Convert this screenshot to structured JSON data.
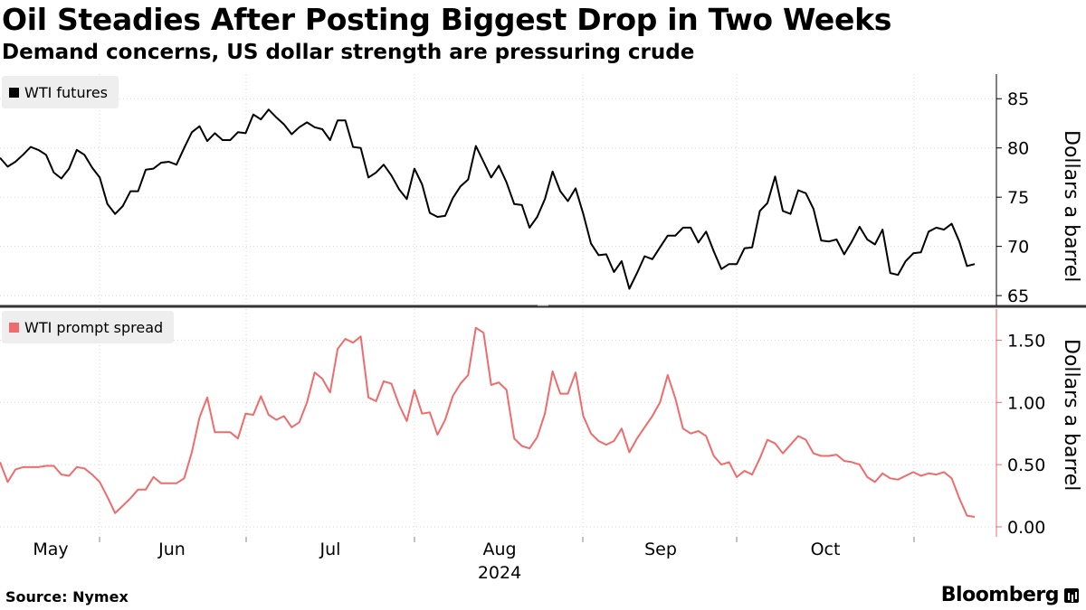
{
  "title": "Oil Steadies After Posting Biggest Drop in Two Weeks",
  "subtitle": "Demand concerns, US dollar strength are pressuring crude",
  "source": "Source: Nymex",
  "brand": "Bloomberg",
  "chart_data": [
    {
      "type": "line",
      "series_name": "WTI futures",
      "color": "#000000",
      "ylabel": "Dollars a barrel",
      "ylim": [
        64,
        87.5
      ],
      "yticks": [
        65,
        70,
        75,
        80,
        85
      ],
      "ytick_labels": [
        "65",
        "70",
        "75",
        "80",
        "85"
      ],
      "values": [
        79.0,
        78.1,
        78.6,
        79.3,
        80.1,
        79.8,
        79.3,
        77.5,
        76.9,
        77.9,
        79.8,
        79.3,
        78.0,
        77.0,
        74.3,
        73.3,
        74.1,
        75.6,
        75.6,
        77.8,
        77.9,
        78.5,
        78.6,
        78.3,
        80.0,
        81.6,
        82.2,
        80.7,
        81.5,
        80.8,
        80.8,
        81.6,
        81.5,
        83.4,
        82.9,
        83.9,
        83.1,
        82.4,
        81.4,
        82.1,
        82.6,
        82.1,
        81.9,
        80.8,
        82.8,
        82.8,
        80.1,
        80.0,
        77.0,
        77.5,
        78.3,
        77.2,
        75.8,
        74.8,
        77.9,
        76.3,
        73.4,
        73.0,
        73.1,
        74.9,
        76.1,
        76.8,
        80.2,
        78.6,
        77.0,
        78.2,
        76.5,
        74.3,
        74.2,
        71.9,
        73.0,
        74.8,
        77.6,
        75.6,
        74.6,
        75.9,
        73.3,
        70.3,
        69.1,
        69.2,
        67.4,
        68.5,
        65.7,
        67.3,
        69.0,
        68.7,
        69.9,
        71.1,
        71.1,
        71.9,
        71.9,
        70.4,
        71.5,
        69.5,
        67.7,
        68.2,
        68.2,
        69.8,
        69.9,
        73.6,
        74.4,
        77.1,
        73.6,
        73.3,
        75.7,
        75.4,
        73.8,
        70.6,
        70.5,
        70.7,
        69.2,
        70.5,
        72.0,
        70.7,
        70.2,
        71.7,
        67.3,
        67.1,
        68.5,
        69.3,
        69.4,
        71.5,
        71.9,
        71.7,
        72.3,
        70.5,
        68.0,
        68.2
      ]
    },
    {
      "type": "line",
      "series_name": "WTI prompt spread",
      "color": "#f06b6b",
      "ylabel": "Dollars a barrel",
      "ylim": [
        -0.08,
        1.75
      ],
      "yticks": [
        0,
        0.5,
        1.0,
        1.5
      ],
      "ytick_labels": [
        "0.00",
        "0.50",
        "1.00",
        "1.50"
      ],
      "values": [
        0.52,
        0.36,
        0.46,
        0.48,
        0.48,
        0.48,
        0.49,
        0.49,
        0.42,
        0.41,
        0.48,
        0.47,
        0.42,
        0.36,
        0.24,
        0.11,
        0.17,
        0.23,
        0.3,
        0.3,
        0.4,
        0.35,
        0.35,
        0.35,
        0.39,
        0.6,
        0.88,
        1.04,
        0.76,
        0.76,
        0.76,
        0.71,
        0.91,
        0.9,
        1.05,
        0.9,
        0.86,
        0.89,
        0.8,
        0.84,
        1.0,
        1.24,
        1.19,
        1.08,
        1.43,
        1.51,
        1.48,
        1.53,
        1.04,
        1.01,
        1.17,
        1.15,
        0.98,
        0.85,
        1.1,
        0.91,
        0.92,
        0.74,
        0.86,
        1.05,
        1.15,
        1.22,
        1.6,
        1.56,
        1.14,
        1.16,
        1.1,
        0.71,
        0.65,
        0.63,
        0.72,
        0.91,
        1.25,
        1.07,
        1.07,
        1.24,
        0.89,
        0.75,
        0.69,
        0.66,
        0.69,
        0.79,
        0.6,
        0.71,
        0.8,
        0.89,
        1.0,
        1.22,
        1.03,
        0.79,
        0.75,
        0.77,
        0.73,
        0.57,
        0.5,
        0.52,
        0.4,
        0.45,
        0.42,
        0.55,
        0.7,
        0.67,
        0.59,
        0.66,
        0.73,
        0.7,
        0.59,
        0.57,
        0.57,
        0.58,
        0.53,
        0.52,
        0.5,
        0.4,
        0.36,
        0.43,
        0.39,
        0.38,
        0.41,
        0.44,
        0.41,
        0.43,
        0.42,
        0.44,
        0.39,
        0.23,
        0.09,
        0.08
      ]
    }
  ],
  "x_axis": {
    "months": [
      "May",
      "Jun",
      "Jul",
      "Aug",
      "Sep",
      "Oct"
    ],
    "year": "2024"
  }
}
